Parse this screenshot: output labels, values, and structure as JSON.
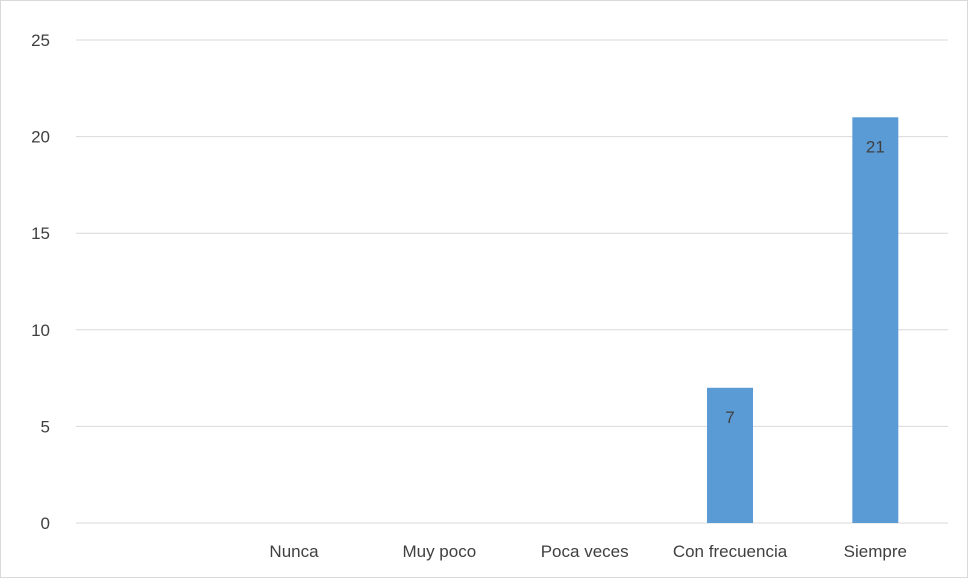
{
  "chart_data": {
    "type": "bar",
    "categories": [
      "",
      "Nunca",
      "Muy poco",
      "Poca veces",
      "Con frecuencia",
      "Siempre"
    ],
    "values": [
      null,
      0,
      0,
      0,
      7,
      21
    ],
    "data_labels": [
      "",
      "",
      "",
      "",
      "7",
      "21"
    ],
    "ylim": [
      0,
      25
    ],
    "yticks": [
      0,
      5,
      10,
      15,
      20,
      25
    ],
    "grid": true,
    "legend": "none",
    "title": "",
    "xlabel": "",
    "ylabel": "",
    "bar_color": "#5b9bd5"
  }
}
